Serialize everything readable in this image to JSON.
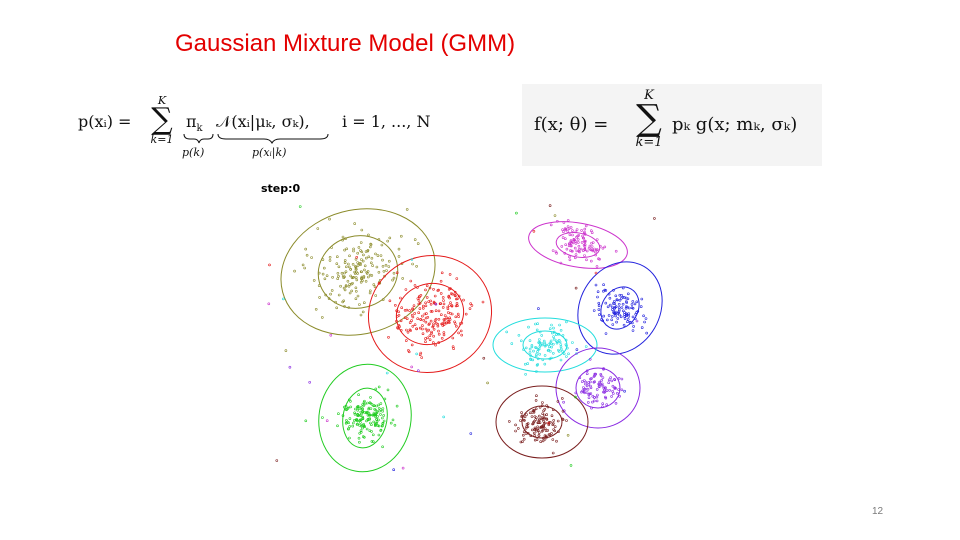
{
  "slide": {
    "title": "Gaussian Mixture Model (GMM)",
    "page_number": "12",
    "step_label": "step:0"
  },
  "equation1": {
    "lhs": "p(xᵢ) =",
    "sum_top": "K",
    "sum_bottom": "k=1",
    "pi_term": "π",
    "pi_sub": "k",
    "pi_under": "p(k)",
    "normal_term": "𝒩(xᵢ|μₖ, σₖ),",
    "normal_under": "p(xᵢ|k)",
    "range": "i = 1, ..., N"
  },
  "equation2": {
    "lhs": "f(x; θ) =",
    "sum_top": "K",
    "sum_bottom": "k=1",
    "rhs": "pₖ g(x; mₖ, σₖ)"
  },
  "clusters": [
    {
      "color": "#8b8b2a",
      "cx": 108,
      "cy": 82,
      "rx_outer": 78,
      "ry_outer": 62,
      "rx_inner": 40,
      "ry_inner": 36,
      "tilt": -15,
      "n": 180,
      "spread": 42
    },
    {
      "color": "#e41a1a",
      "cx": 180,
      "cy": 124,
      "rx_outer": 62,
      "ry_outer": 58,
      "rx_inner": 34,
      "ry_inner": 30,
      "tilt": -20,
      "n": 200,
      "spread": 36
    },
    {
      "color": "#22cc22",
      "cx": 115,
      "cy": 228,
      "rx_outer": 46,
      "ry_outer": 54,
      "rx_inner": 22,
      "ry_inner": 30,
      "tilt": 10,
      "n": 170,
      "spread": 22
    },
    {
      "color": "#cc33cc",
      "cx": 328,
      "cy": 55,
      "rx_outer": 50,
      "ry_outer": 22,
      "rx_inner": 22,
      "ry_inner": 12,
      "tilt": 10,
      "n": 110,
      "spread": 22
    },
    {
      "color": "#2222dd",
      "cx": 370,
      "cy": 118,
      "rx_outer": 40,
      "ry_outer": 48,
      "rx_inner": 18,
      "ry_inner": 22,
      "tilt": 30,
      "n": 110,
      "spread": 22
    },
    {
      "color": "#22dddd",
      "cx": 295,
      "cy": 155,
      "rx_outer": 52,
      "ry_outer": 27,
      "rx_inner": 22,
      "ry_inner": 14,
      "tilt": 0,
      "n": 100,
      "spread": 26
    },
    {
      "color": "#8a2be2",
      "cx": 348,
      "cy": 198,
      "rx_outer": 42,
      "ry_outer": 40,
      "rx_inner": 22,
      "ry_inner": 20,
      "tilt": 0,
      "n": 100,
      "spread": 22
    },
    {
      "color": "#7a1f1f",
      "cx": 292,
      "cy": 232,
      "rx_outer": 46,
      "ry_outer": 36,
      "rx_inner": 20,
      "ry_inner": 16,
      "tilt": 0,
      "n": 130,
      "spread": 22
    }
  ]
}
